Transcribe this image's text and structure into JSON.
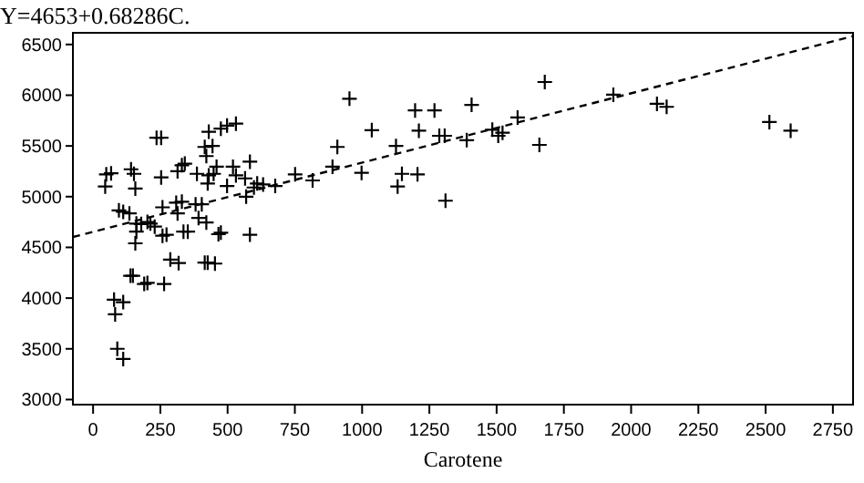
{
  "chart_data": {
    "type": "scatter",
    "title": "Y=4653+0.68286C.",
    "xlabel": "Carotene",
    "xlim": [
      -75,
      2825
    ],
    "ylim": [
      2950,
      6615
    ],
    "xticks": [
      0,
      250,
      500,
      750,
      1000,
      1250,
      1500,
      1750,
      2000,
      2250,
      2500,
      2750
    ],
    "yticks": [
      3000,
      3500,
      4000,
      4500,
      5000,
      5500,
      6000,
      6500
    ],
    "grid": false,
    "series": [
      {
        "color": "#000000",
        "marker": "cross",
        "x": [
          49,
          67,
          45,
          141,
          152,
          157,
          96,
          112,
          135,
          161,
          179,
          202,
          213,
          229,
          161,
          157,
          139,
          148,
          190,
          202,
          78,
          112,
          82,
          90,
          112,
          236,
          253,
          253,
          258,
          258,
          273,
          264,
          287,
          318,
          314,
          309,
          330,
          314,
          330,
          341,
          336,
          352,
          381,
          404,
          392,
          421,
          386,
          415,
          421,
          430,
          444,
          426,
          448,
          459,
          430,
          426,
          415,
          453,
          466,
          475,
          475,
          498,
          531,
          498,
          520,
          531,
          565,
          583,
          569,
          583,
          598,
          610,
          632,
          677,
          751,
          816,
          890,
          908,
          953,
          998,
          1036,
          1126,
          1132,
          1148,
          1197,
          1211,
          1206,
          1269,
          1287,
          1307,
          1310,
          1389,
          1407,
          1484,
          1506,
          1522,
          1578,
          1659,
          1679,
          1934,
          2096,
          2132,
          2514,
          2593
        ],
        "values": [
          5220,
          5230,
          5100,
          5270,
          5225,
          5080,
          4865,
          4850,
          4835,
          4735,
          4730,
          4750,
          4735,
          4705,
          4655,
          4540,
          4220,
          4220,
          4140,
          4150,
          3985,
          3960,
          3840,
          3500,
          3400,
          5580,
          5580,
          5190,
          4895,
          4615,
          4625,
          4140,
          4380,
          4345,
          4835,
          4940,
          4950,
          5250,
          5310,
          5325,
          4655,
          4655,
          4925,
          4925,
          4790,
          4745,
          5225,
          5490,
          5400,
          5640,
          5500,
          5130,
          5225,
          5295,
          5210,
          4350,
          4350,
          4340,
          4630,
          4645,
          5670,
          5700,
          5720,
          5105,
          5295,
          5210,
          5180,
          5345,
          5000,
          4625,
          5090,
          5130,
          5120,
          5105,
          5220,
          5160,
          5295,
          5490,
          5965,
          5235,
          5655,
          5500,
          5100,
          5225,
          5850,
          5650,
          5220,
          5850,
          5600,
          5600,
          4960,
          5557,
          5905,
          5660,
          5600,
          5630,
          5780,
          5510,
          6130,
          6005,
          5915,
          5885,
          5735,
          5650
        ]
      },
      {
        "type": "line",
        "color": "#000000",
        "marker": "none",
        "line_style": "dashed",
        "x": [
          -75,
          2825
        ],
        "values": [
          4602,
          6582
        ]
      }
    ]
  }
}
